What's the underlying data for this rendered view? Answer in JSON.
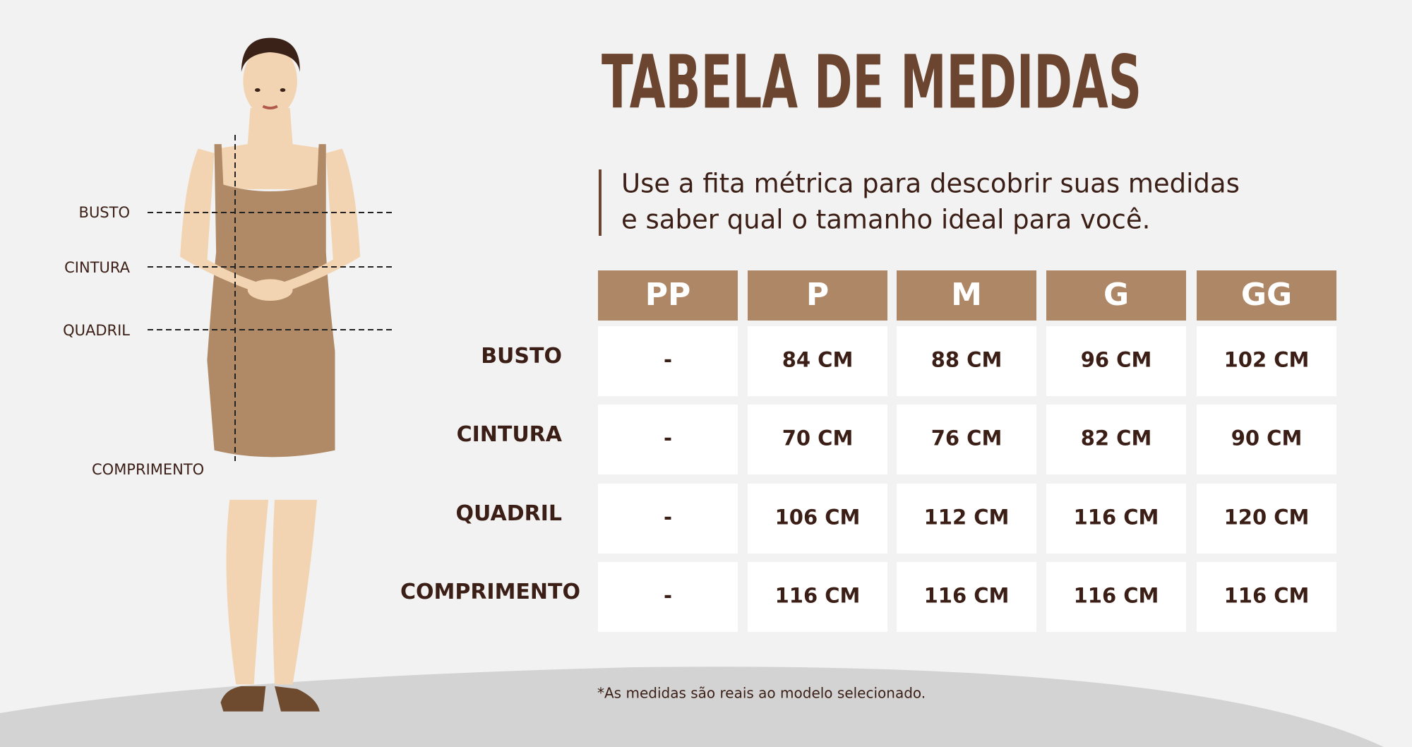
{
  "header": {
    "title": "TABELA DE MEDIDAS",
    "subtitle": [
      "Use a fita métrica para descobrir suas medidas",
      "e saber qual o tamanho ideal para você."
    ]
  },
  "figure": {
    "labels": [
      "BUSTO",
      "CINTURA",
      "QUADRIL",
      "COMPRIMENTO"
    ]
  },
  "table": {
    "headers": [
      "PP",
      "P",
      "M",
      "G",
      "GG"
    ],
    "rows": [
      {
        "label": "BUSTO",
        "cells": [
          "-",
          "84 CM",
          "88 CM",
          "96 CM",
          "102 CM"
        ]
      },
      {
        "label": "CINTURA",
        "cells": [
          "-",
          "70 CM",
          "76 CM",
          "82 CM",
          "90 CM"
        ]
      },
      {
        "label": "QUADRIL",
        "cells": [
          "-",
          "106 CM",
          "112 CM",
          "116 CM",
          "120 CM"
        ]
      },
      {
        "label": "COMPRIMENTO",
        "cells": [
          "-",
          "116 CM",
          "116 CM",
          "116 CM",
          "116 CM"
        ]
      }
    ]
  },
  "footnote": "*As medidas são reais ao modelo selecionado."
}
